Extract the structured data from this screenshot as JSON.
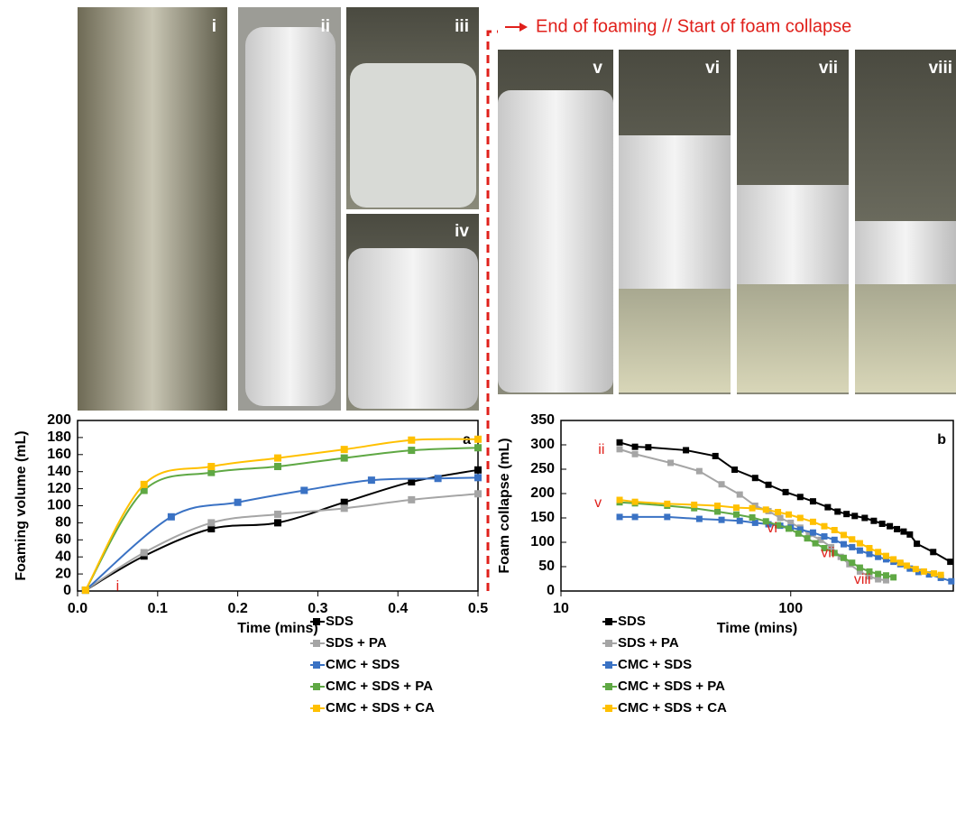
{
  "photo_labels": [
    "i",
    "ii",
    "iii",
    "iv",
    "v",
    "vi",
    "vii",
    "viii"
  ],
  "arrow_label": "End of foaming // Start of foam collapse",
  "chart_data": [
    {
      "type": "line",
      "panel": "a",
      "xlabel": "Time (mins)",
      "ylabel": "Foaming volume (mL)",
      "xlim": [
        0,
        0.5
      ],
      "xticks": [
        {
          "value": 0,
          "label": "0.0"
        },
        0.1,
        0.2,
        0.3,
        0.4,
        0.5
      ],
      "ylim": [
        0,
        200
      ],
      "yticks": [
        0,
        20,
        40,
        60,
        80,
        100,
        120,
        140,
        160,
        180,
        200
      ],
      "annotations": [
        "i"
      ],
      "series": [
        {
          "name": "SDS",
          "color": "#000000",
          "x": [
            0.01,
            0.083,
            0.167,
            0.25,
            0.333,
            0.417,
            0.5
          ],
          "values": [
            1,
            41,
            73,
            80,
            104,
            128,
            142
          ]
        },
        {
          "name": "SDS + PA",
          "color": "#a5a5a5",
          "x": [
            0.01,
            0.083,
            0.167,
            0.25,
            0.333,
            0.417,
            0.5
          ],
          "values": [
            1,
            45,
            80,
            90,
            97,
            107,
            114
          ]
        },
        {
          "name": "CMC + SDS",
          "color": "#3a72c4",
          "x": [
            0.01,
            0.117,
            0.2,
            0.283,
            0.367,
            0.45,
            0.5
          ],
          "values": [
            1,
            87,
            104,
            118,
            130,
            132,
            133
          ]
        },
        {
          "name": "CMC + SDS + PA",
          "color": "#5fa844",
          "x": [
            0.01,
            0.083,
            0.167,
            0.25,
            0.333,
            0.417,
            0.5
          ],
          "values": [
            1,
            118,
            139,
            146,
            156,
            165,
            168
          ]
        },
        {
          "name": "CMC + SDS + CA",
          "color": "#ffc000",
          "x": [
            0.01,
            0.083,
            0.167,
            0.25,
            0.333,
            0.417,
            0.5
          ],
          "values": [
            1,
            125,
            146,
            156,
            166,
            177,
            178
          ]
        }
      ]
    },
    {
      "type": "line",
      "panel": "b",
      "xlabel": "Time (mins)",
      "ylabel": "Foam collapse (mL)",
      "xscale": "log",
      "xlim": [
        10,
        510
      ],
      "xticks": [
        10,
        100
      ],
      "ylim": [
        0,
        350
      ],
      "yticks": [
        0,
        50,
        100,
        150,
        200,
        250,
        300,
        350
      ],
      "annotations": [
        "ii",
        "v",
        "vi",
        "vii",
        "viii"
      ],
      "series": [
        {
          "name": "SDS",
          "color": "#000000",
          "x": [
            18,
            21,
            24,
            35,
            47,
            57,
            70,
            80,
            95,
            110,
            125,
            145,
            160,
            175,
            190,
            210,
            230,
            250,
            270,
            290,
            310,
            330,
            354,
            417,
            495
          ],
          "values": [
            305,
            296,
            295,
            289,
            277,
            249,
            232,
            218,
            203,
            193,
            184,
            172,
            163,
            158,
            154,
            150,
            144,
            138,
            133,
            127,
            122,
            116,
            97,
            80,
            60
          ]
        },
        {
          "name": "SDS + PA",
          "color": "#a5a5a5",
          "x": [
            18,
            21,
            30,
            40,
            50,
            60,
            70,
            80,
            90,
            100,
            110,
            120,
            135,
            150,
            165,
            180,
            200,
            220,
            240,
            260
          ],
          "values": [
            291,
            281,
            263,
            246,
            219,
            198,
            175,
            164,
            150,
            140,
            130,
            117,
            105,
            90,
            70,
            55,
            40,
            30,
            24,
            22
          ]
        },
        {
          "name": "CMC + SDS",
          "color": "#3a72c4",
          "x": [
            18,
            21,
            29,
            40,
            50,
            60,
            70,
            80,
            90,
            100,
            110,
            125,
            140,
            155,
            170,
            185,
            200,
            220,
            240,
            260,
            280,
            300,
            330,
            360,
            400,
            450,
            500
          ],
          "values": [
            152,
            152,
            152,
            148,
            146,
            144,
            140,
            137,
            134,
            130,
            126,
            120,
            112,
            105,
            96,
            90,
            83,
            76,
            70,
            65,
            60,
            55,
            46,
            39,
            34,
            27,
            20
          ]
        },
        {
          "name": "CMC + SDS + PA",
          "color": "#5fa844",
          "x": [
            18,
            21,
            29,
            38,
            48,
            58,
            68,
            78,
            88,
            98,
            108,
            118,
            128,
            140,
            155,
            170,
            185,
            200,
            220,
            240,
            260,
            280
          ],
          "values": [
            182,
            180,
            175,
            170,
            163,
            157,
            151,
            143,
            135,
            128,
            118,
            108,
            98,
            88,
            78,
            68,
            58,
            48,
            40,
            35,
            32,
            28
          ]
        },
        {
          "name": "CMC + SDS + CA",
          "color": "#ffc000",
          "x": [
            18,
            21,
            29,
            38,
            48,
            58,
            68,
            78,
            88,
            98,
            110,
            125,
            140,
            155,
            170,
            185,
            200,
            220,
            240,
            260,
            280,
            300,
            320,
            350,
            380,
            420,
            450
          ],
          "values": [
            187,
            183,
            179,
            177,
            175,
            171,
            170,
            167,
            162,
            157,
            150,
            142,
            133,
            125,
            115,
            106,
            98,
            88,
            80,
            72,
            65,
            58,
            52,
            45,
            40,
            36,
            33
          ]
        }
      ]
    }
  ]
}
